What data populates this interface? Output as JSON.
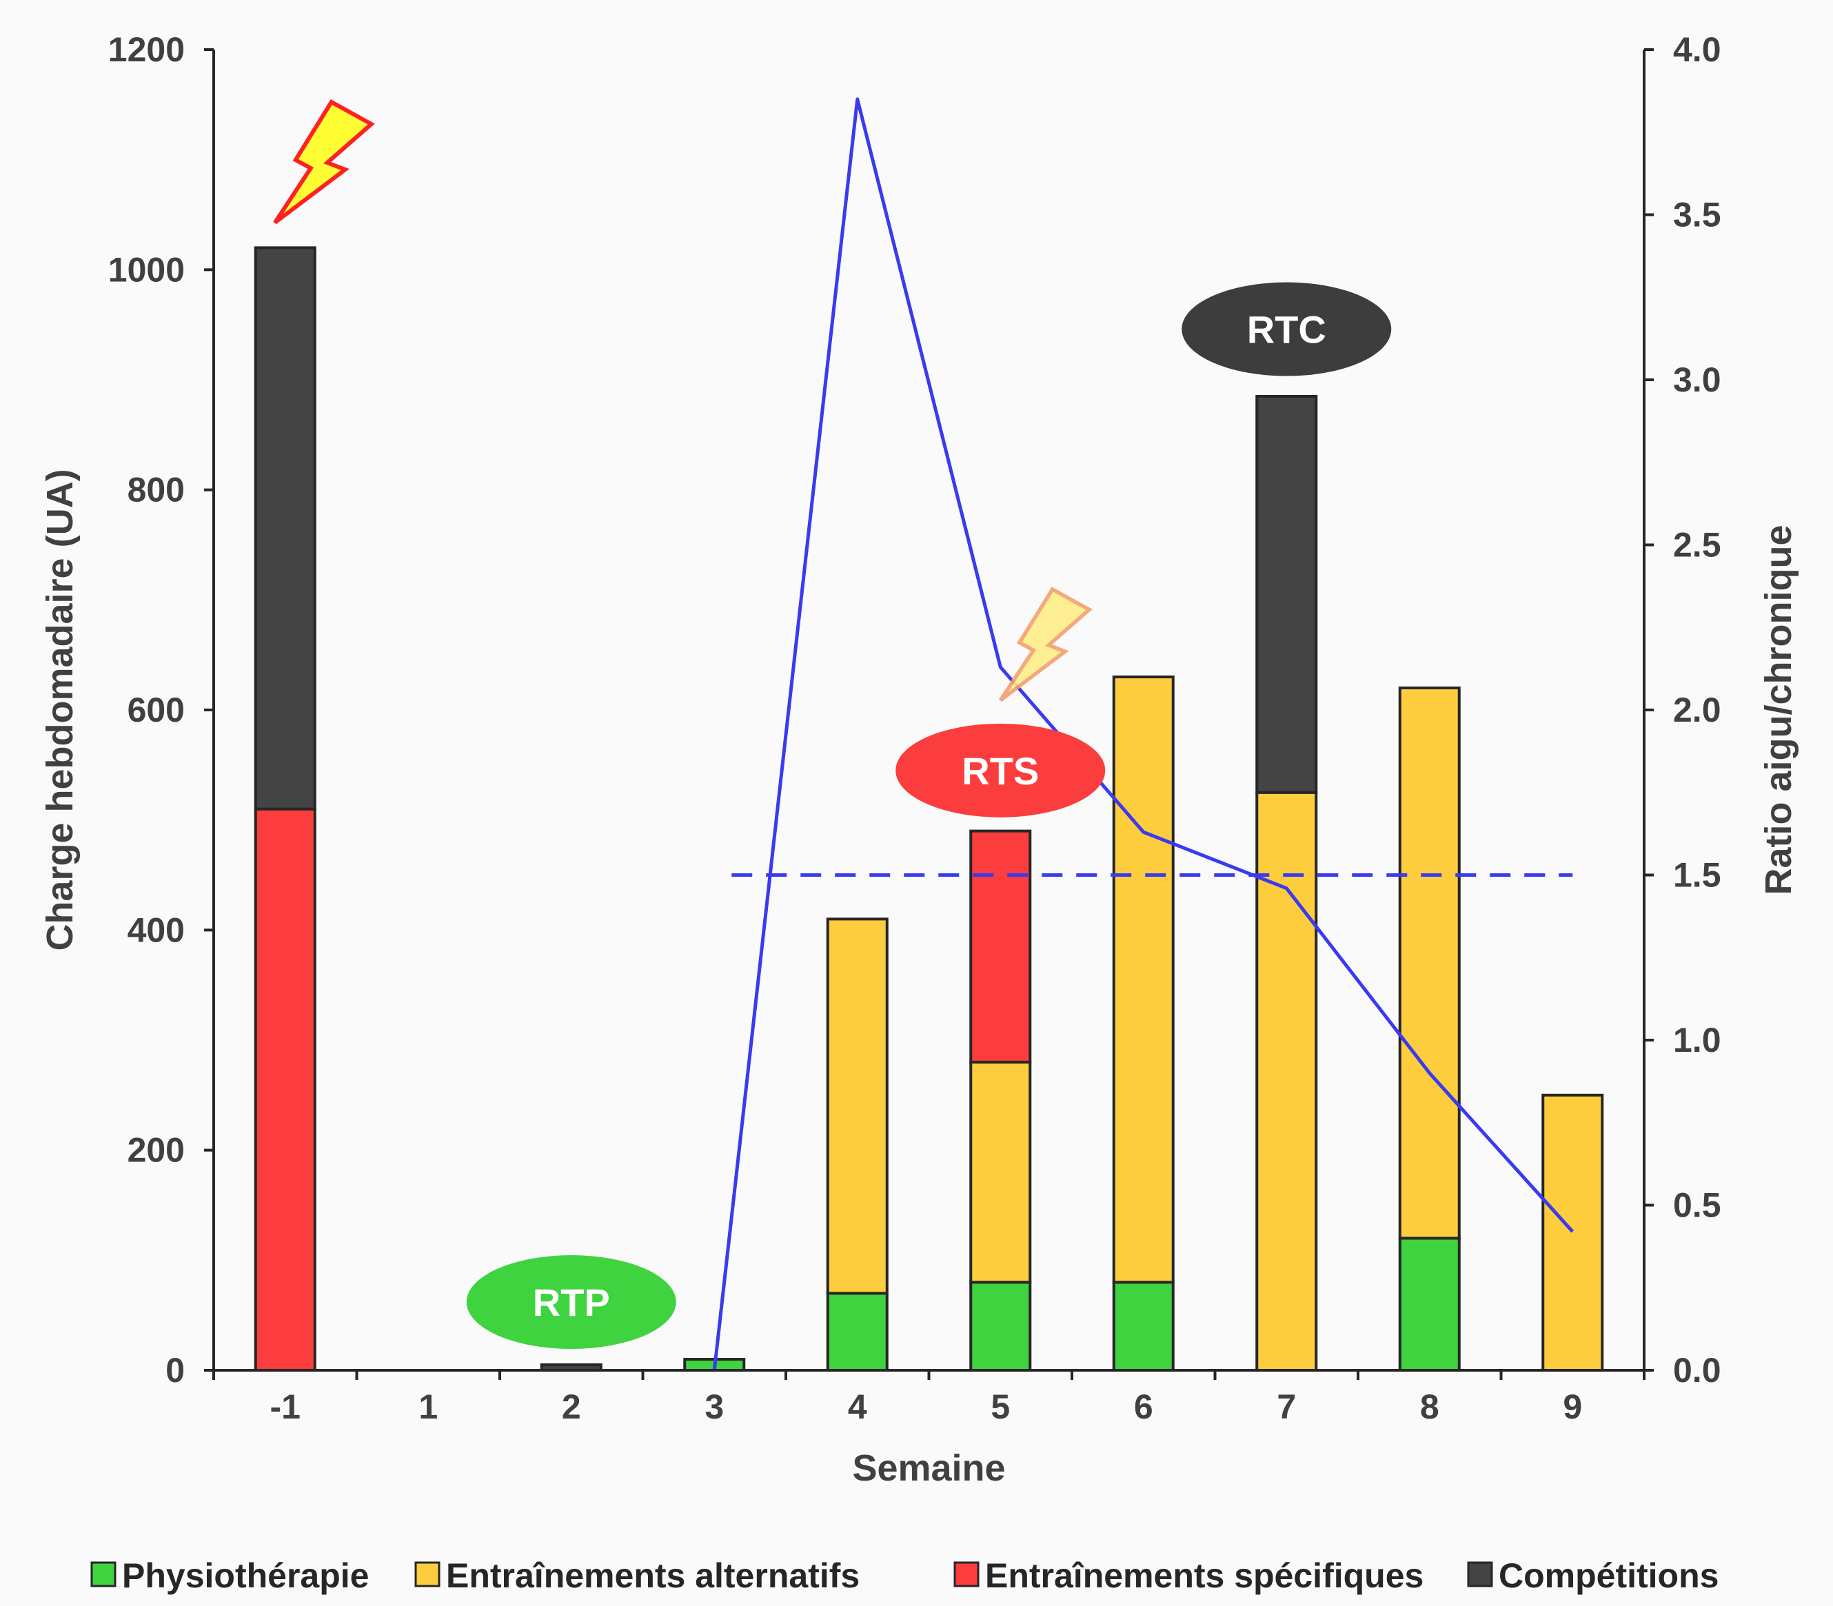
{
  "chart_data": {
    "type": "bar",
    "xlabel": "Semaine",
    "ylabel": "Charge hebdomadaire  (UA)",
    "y2label": "Ratio aigu/chronique",
    "ylim": [
      0,
      1200
    ],
    "y2lim": [
      0,
      4.0
    ],
    "yticks": [
      "0",
      "200",
      "400",
      "600",
      "800",
      "1000",
      "1200"
    ],
    "y2ticks": [
      "0.0",
      "0.5",
      "1.0",
      "1.5",
      "2.0",
      "2.5",
      "3.0",
      "3.5",
      "4.0"
    ],
    "categories": [
      "-1",
      "1",
      "2",
      "3",
      "4",
      "5",
      "6",
      "7",
      "8",
      "9"
    ],
    "stacked": true,
    "series": [
      {
        "name": "Physiothérapie",
        "color": "#3fd33f",
        "values": [
          0,
          0,
          0,
          10,
          70,
          80,
          80,
          0,
          120,
          0
        ]
      },
      {
        "name": "Entraînements alternatifs",
        "color": "#fdcd3d",
        "values": [
          0,
          0,
          0,
          0,
          340,
          200,
          550,
          525,
          500,
          250
        ]
      },
      {
        "name": "Entraînements spécifiques",
        "color": "#fb3d3d",
        "values": [
          510,
          0,
          0,
          0,
          0,
          210,
          0,
          0,
          0,
          0
        ]
      },
      {
        "name": "Compétitions",
        "color": "#444444",
        "values": [
          510,
          0,
          5,
          0,
          0,
          0,
          0,
          360,
          0,
          0
        ]
      }
    ],
    "ratio_line": {
      "color": "#3a3af0",
      "axis": "secondary",
      "points": [
        {
          "x": "3",
          "y": 0.0
        },
        {
          "x": "4",
          "y": 3.85
        },
        {
          "x": "5",
          "y": 2.13
        },
        {
          "x": "6",
          "y": 1.63
        },
        {
          "x": "7",
          "y": 1.46
        },
        {
          "x": "8",
          "y": 0.9
        },
        {
          "x": "9",
          "y": 0.42
        }
      ]
    },
    "threshold_line": {
      "y": 1.5,
      "axis": "secondary",
      "from": "3",
      "to": "9",
      "style": "dashed",
      "color": "#3a3af0"
    },
    "annotations": [
      {
        "text": "RTP",
        "x": "2",
        "y": 62,
        "color": "#3fd33f"
      },
      {
        "text": "RTS",
        "x": "5",
        "y": 545,
        "color": "#fb3d3d"
      },
      {
        "text": "RTC",
        "x": "7",
        "y": 946,
        "color": "#3d3d3d"
      }
    ],
    "injury_markers": [
      {
        "icon": "lightning-bolt-icon",
        "x": "-1",
        "style": "bright"
      },
      {
        "icon": "lightning-bolt-icon",
        "x": "5",
        "style": "faded"
      }
    ],
    "legend_position": "bottom",
    "grid": false
  }
}
